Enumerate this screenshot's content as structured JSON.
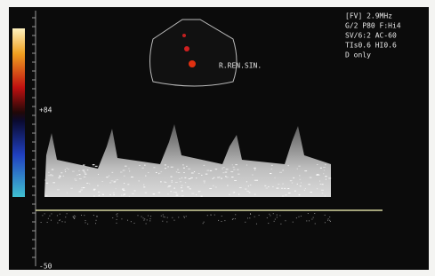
{
  "header": {
    "settings": [
      "[FV] 2.9MHz",
      "G/2  P80  F:Hi4",
      "SV/6:2  AC-60",
      "TIs0.6  HI0.6",
      "D only"
    ]
  },
  "labels": {
    "vessel": "R.REN.SIN.",
    "scale_max": "+84",
    "scale_min": "-50"
  }
}
